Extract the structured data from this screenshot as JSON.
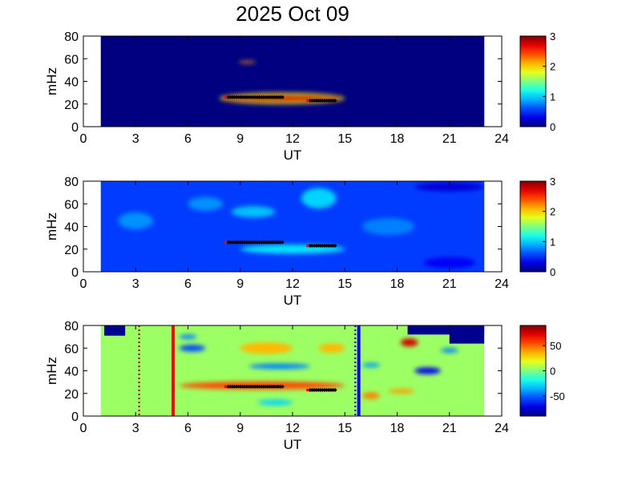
{
  "title": "2025 Oct 09",
  "chart_data": [
    {
      "type": "heatmap",
      "xlabel": "UT",
      "ylabel": "mHz",
      "xlim": [
        0,
        24
      ],
      "ylim": [
        0,
        80
      ],
      "xticks": [
        0,
        3,
        6,
        9,
        12,
        15,
        18,
        21,
        24
      ],
      "yticks": [
        0,
        20,
        40,
        60,
        80
      ],
      "data_coverage_ut": [
        1,
        23
      ],
      "colormap": "jet",
      "clim": [
        0,
        3
      ],
      "colorbar_ticks": [
        0,
        1,
        2,
        3
      ],
      "background_value": 0,
      "features": [
        {
          "t0": 7.9,
          "t1": 14.9,
          "f": 25,
          "width_mhz": 7,
          "value": 3
        },
        {
          "t0": 8.9,
          "t1": 9.9,
          "f": 57,
          "width_mhz": 2,
          "value": 2.2
        }
      ],
      "markers": [
        {
          "t0": 8.3,
          "t1": 11.5,
          "f": 26
        },
        {
          "t0": 13.0,
          "t1": 14.5,
          "f": 23
        }
      ],
      "vlines": []
    },
    {
      "type": "heatmap",
      "xlabel": "UT",
      "ylabel": "mHz",
      "xlim": [
        0,
        24
      ],
      "ylim": [
        0,
        80
      ],
      "xticks": [
        0,
        3,
        6,
        9,
        12,
        15,
        18,
        21,
        24
      ],
      "yticks": [
        0,
        20,
        40,
        60,
        80
      ],
      "data_coverage_ut": [
        1,
        23
      ],
      "colormap": "jet",
      "clim": [
        0,
        3
      ],
      "colorbar_ticks": [
        0,
        1,
        2,
        3
      ],
      "background_value": 0.55,
      "features": [
        {
          "t0": 8.5,
          "t1": 11,
          "f": 53,
          "width_mhz": 10,
          "value": 0.95
        },
        {
          "t0": 12.5,
          "t1": 14.5,
          "f": 65,
          "width_mhz": 18,
          "value": 1.0
        },
        {
          "t0": 9,
          "t1": 15,
          "f": 20,
          "width_mhz": 8,
          "value": 1.05
        },
        {
          "t0": 2,
          "t1": 4,
          "f": 45,
          "width_mhz": 15,
          "value": 0.8
        },
        {
          "t0": 16,
          "t1": 19,
          "f": 40,
          "width_mhz": 15,
          "value": 0.75
        },
        {
          "t0": 6,
          "t1": 8,
          "f": 60,
          "width_mhz": 12,
          "value": 0.8
        },
        {
          "t0": 19.5,
          "t1": 22.5,
          "f": 8,
          "width_mhz": 10,
          "value": 0.35
        },
        {
          "t0": 19,
          "t1": 23,
          "f": 75,
          "width_mhz": 8,
          "value": 0.25
        }
      ],
      "markers": [
        {
          "t0": 8.3,
          "t1": 11.5,
          "f": 26
        },
        {
          "t0": 13.0,
          "t1": 14.5,
          "f": 23
        }
      ],
      "vlines": []
    },
    {
      "type": "heatmap",
      "xlabel": "UT",
      "ylabel": "mHz",
      "xlim": [
        0,
        24
      ],
      "ylim": [
        0,
        80
      ],
      "xticks": [
        0,
        3,
        6,
        9,
        12,
        15,
        18,
        21,
        24
      ],
      "yticks": [
        0,
        20,
        40,
        60,
        80
      ],
      "data_coverage_ut": [
        1,
        23
      ],
      "colormap": "jet",
      "clim": [
        -90,
        90
      ],
      "colorbar_ticks": [
        -50,
        0,
        50
      ],
      "background_value": 5,
      "features": [
        {
          "t0": 5.5,
          "t1": 15,
          "f": 27,
          "width_mhz": 7,
          "value": 55
        },
        {
          "t0": 18.2,
          "t1": 19.2,
          "f": 65,
          "width_mhz": 7,
          "value": 75
        },
        {
          "t0": 19,
          "t1": 20.5,
          "f": 40,
          "width_mhz": 6,
          "value": -70
        },
        {
          "t0": 5.5,
          "t1": 7,
          "f": 60,
          "width_mhz": 6,
          "value": -55
        },
        {
          "t0": 5.5,
          "t1": 6.5,
          "f": 70,
          "width_mhz": 4,
          "value": -45
        },
        {
          "t0": 9.5,
          "t1": 13,
          "f": 44,
          "width_mhz": 5,
          "value": -45
        },
        {
          "t0": 9,
          "t1": 12,
          "f": 60,
          "width_mhz": 10,
          "value": 35
        },
        {
          "t0": 13.5,
          "t1": 15,
          "f": 60,
          "width_mhz": 8,
          "value": 35
        },
        {
          "t0": 16,
          "t1": 17,
          "f": 45,
          "width_mhz": 4,
          "value": -40
        },
        {
          "t0": 20.5,
          "t1": 21.5,
          "f": 58,
          "width_mhz": 4,
          "value": -45
        },
        {
          "t0": 16,
          "t1": 17,
          "f": 18,
          "width_mhz": 6,
          "value": 45
        },
        {
          "t0": 17.5,
          "t1": 19,
          "f": 22,
          "width_mhz": 4,
          "value": 40
        },
        {
          "t0": 10,
          "t1": 12,
          "f": 12,
          "width_mhz": 5,
          "value": -30
        }
      ],
      "nan_regions": [
        {
          "t0": 1.2,
          "t1": 2.4,
          "f0": 71,
          "f1": 80
        },
        {
          "t0": 18.6,
          "t1": 23,
          "f0": 72,
          "f1": 80
        },
        {
          "t0": 21,
          "t1": 23,
          "f0": 64,
          "f1": 80
        }
      ],
      "markers": [
        {
          "t0": 8.3,
          "t1": 11.5,
          "f": 26
        },
        {
          "t0": 13.0,
          "t1": 14.5,
          "f": 23
        }
      ],
      "vlines": [
        {
          "t": 5.15,
          "color": "#ff0000",
          "style": "solid"
        },
        {
          "t": 15.8,
          "color": "#0000ff",
          "style": "solid"
        },
        {
          "t": 3.2,
          "color": "#8b0000",
          "style": "dotted"
        },
        {
          "t": 15.6,
          "color": "#000080",
          "style": "dotted"
        }
      ]
    }
  ]
}
